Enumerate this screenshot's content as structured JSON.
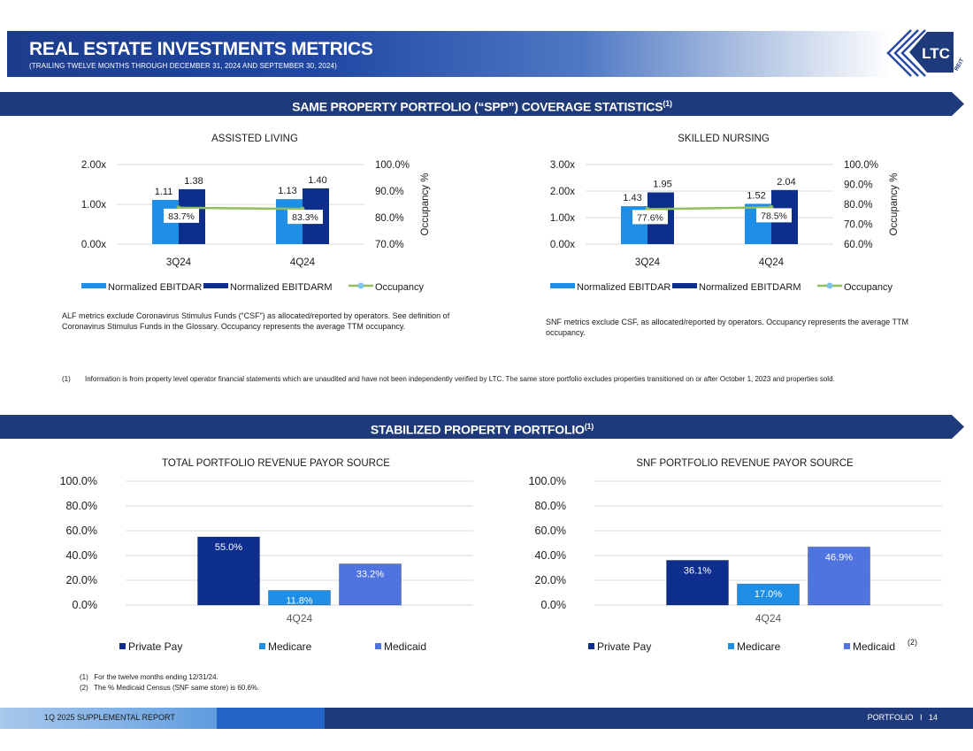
{
  "header": {
    "title": "REAL ESTATE INVESTMENTS METRICS",
    "subtitle": "(TRAILING TWELVE MONTHS THROUGH DECEMBER 31, 2024 AND SEPTEMBER 30, 2024)",
    "logo_text": "LTC",
    "logo_sub": "REIT"
  },
  "section1": {
    "title": "SAME PROPERTY PORTFOLIO (“SPP”) COVERAGE STATISTICS",
    "sup": "(1)"
  },
  "section2": {
    "title": "STABILIZED PROPERTY PORTFOLIO",
    "sup": "(1)"
  },
  "notes": {
    "alf": "ALF metrics exclude Coronavirus Stimulus Funds (“CSF”) as allocated/reported by operators. See definition of Coronavirus Stimulus Funds in the Glossary. Occupancy represents the average TTM occupancy.",
    "snf": "SNF metrics exclude CSF, as allocated/reported by operators. Occupancy represents the average TTM occupancy.",
    "fn1_num": "(1)",
    "fn1": "Information is from property level operator financial statements which are unaudited and have not been independently verified by LTC. The same store portfolio excludes properties transitioned on or after October 1, 2023 and properties sold.",
    "fn2a_num": "(1)",
    "fn2a": "For the twelve months ending 12/31/24.",
    "fn2b_num": "(2)",
    "fn2b": "The % Medicaid Census (SNF same store) is 60.6%."
  },
  "footer": {
    "left": "1Q 2025 SUPPLEMENTAL REPORT",
    "right": "PORTFOLIO   I   14"
  },
  "colors": {
    "ebitdar": "#1f8ee6",
    "ebitdarm": "#0d2e8c",
    "occupancy": "#8fbe5a",
    "private_pay": "#0d2e8c",
    "medicare": "#1f8ee6",
    "medicaid": "#4f74e0",
    "navy": "#1f3a7a"
  },
  "chart_data": [
    {
      "type": "bar",
      "title": "ASSISTED LIVING",
      "categories": [
        "3Q24",
        "4Q24"
      ],
      "series": [
        {
          "name": "Normalized EBITDAR",
          "values": [
            1.11,
            1.13
          ],
          "labels": [
            "1.11",
            "1.13"
          ]
        },
        {
          "name": "Normalized EBITDARM",
          "values": [
            1.38,
            1.4
          ],
          "labels": [
            "1.38",
            "1.40"
          ]
        },
        {
          "name": "Occupancy",
          "type": "line",
          "axis": "secondary",
          "values": [
            83.7,
            83.3
          ],
          "labels": [
            "83.7%",
            "83.3%"
          ]
        }
      ],
      "ylim": [
        0,
        2
      ],
      "yticks": [
        "0.00x",
        "1.00x",
        "2.00x"
      ],
      "y2lim": [
        70,
        100
      ],
      "y2ticks": [
        "70.0%",
        "80.0%",
        "90.0%",
        "100.0%"
      ],
      "y2label": "Occupancy %",
      "legend": "bottom",
      "grid": true
    },
    {
      "type": "bar",
      "title": "SKILLED NURSING",
      "categories": [
        "3Q24",
        "4Q24"
      ],
      "series": [
        {
          "name": "Normalized EBITDAR",
          "values": [
            1.43,
            1.52
          ],
          "labels": [
            "1.43",
            "1.52"
          ]
        },
        {
          "name": "Normalized EBITDARM",
          "values": [
            1.95,
            2.04
          ],
          "labels": [
            "1.95",
            "2.04"
          ]
        },
        {
          "name": "Occupancy",
          "type": "line",
          "axis": "secondary",
          "values": [
            77.6,
            78.5
          ],
          "labels": [
            "77.6%",
            "78.5%"
          ]
        }
      ],
      "ylim": [
        0,
        3
      ],
      "yticks": [
        "0.00x",
        "1.00x",
        "2.00x",
        "3.00x"
      ],
      "y2lim": [
        60,
        100
      ],
      "y2ticks": [
        "60.0%",
        "70.0%",
        "80.0%",
        "90.0%",
        "100.0%"
      ],
      "y2label": "Occupancy %",
      "legend": "bottom",
      "grid": true
    },
    {
      "type": "bar",
      "title": "TOTAL PORTFOLIO REVENUE PAYOR SOURCE",
      "categories": [
        "4Q24"
      ],
      "series": [
        {
          "name": "Private Pay",
          "values": [
            55.0
          ],
          "labels": [
            "55.0%"
          ]
        },
        {
          "name": "Medicare",
          "values": [
            11.8
          ],
          "labels": [
            "11.8%"
          ]
        },
        {
          "name": "Medicaid",
          "values": [
            33.2
          ],
          "labels": [
            "33.2%"
          ]
        }
      ],
      "ylim": [
        0,
        100
      ],
      "yticks": [
        "0.0%",
        "20.0%",
        "40.0%",
        "60.0%",
        "80.0%",
        "100.0%"
      ],
      "legend": "bottom",
      "grid": true
    },
    {
      "type": "bar",
      "title": "SNF PORTFOLIO REVENUE PAYOR SOURCE",
      "categories": [
        "4Q24"
      ],
      "series": [
        {
          "name": "Private Pay",
          "values": [
            36.1
          ],
          "labels": [
            "36.1%"
          ]
        },
        {
          "name": "Medicare",
          "values": [
            17.0
          ],
          "labels": [
            "17.0%"
          ]
        },
        {
          "name": "Medicaid",
          "values": [
            46.9
          ],
          "labels": [
            "46.9%"
          ],
          "sup": "(2)"
        }
      ],
      "ylim": [
        0,
        100
      ],
      "yticks": [
        "0.0%",
        "20.0%",
        "40.0%",
        "60.0%",
        "80.0%",
        "100.0%"
      ],
      "legend": "bottom",
      "grid": true
    }
  ]
}
